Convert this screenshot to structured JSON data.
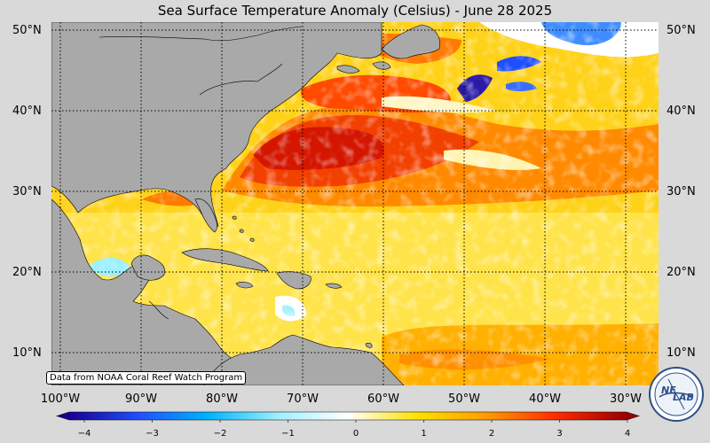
{
  "title": "Sea Surface Temperature Anomaly (Celsius) - June 28 2025",
  "credit": "Data from NOAA Coral Reef Watch Program",
  "latitude_labels": [
    "50°N",
    "40°N",
    "30°N",
    "20°N",
    "10°N"
  ],
  "longitude_labels": [
    "100°W",
    "90°W",
    "80°W",
    "70°W",
    "60°W",
    "50°W",
    "40°W",
    "30°W"
  ],
  "colorbar": {
    "ticks": [
      "−4",
      "−3",
      "−2",
      "−1",
      "0",
      "1",
      "2",
      "3",
      "4"
    ],
    "colors": [
      "#1a0090",
      "#1f4fff",
      "#00b4ff",
      "#9ff0ff",
      "#ffffff",
      "#ffe100",
      "#ff9a00",
      "#ff2a00",
      "#9a0000"
    ]
  },
  "logo_text": [
    "NE",
    "LAB"
  ],
  "colors": {
    "land": "#a9a9a9",
    "background": "#d9d9d9"
  }
}
